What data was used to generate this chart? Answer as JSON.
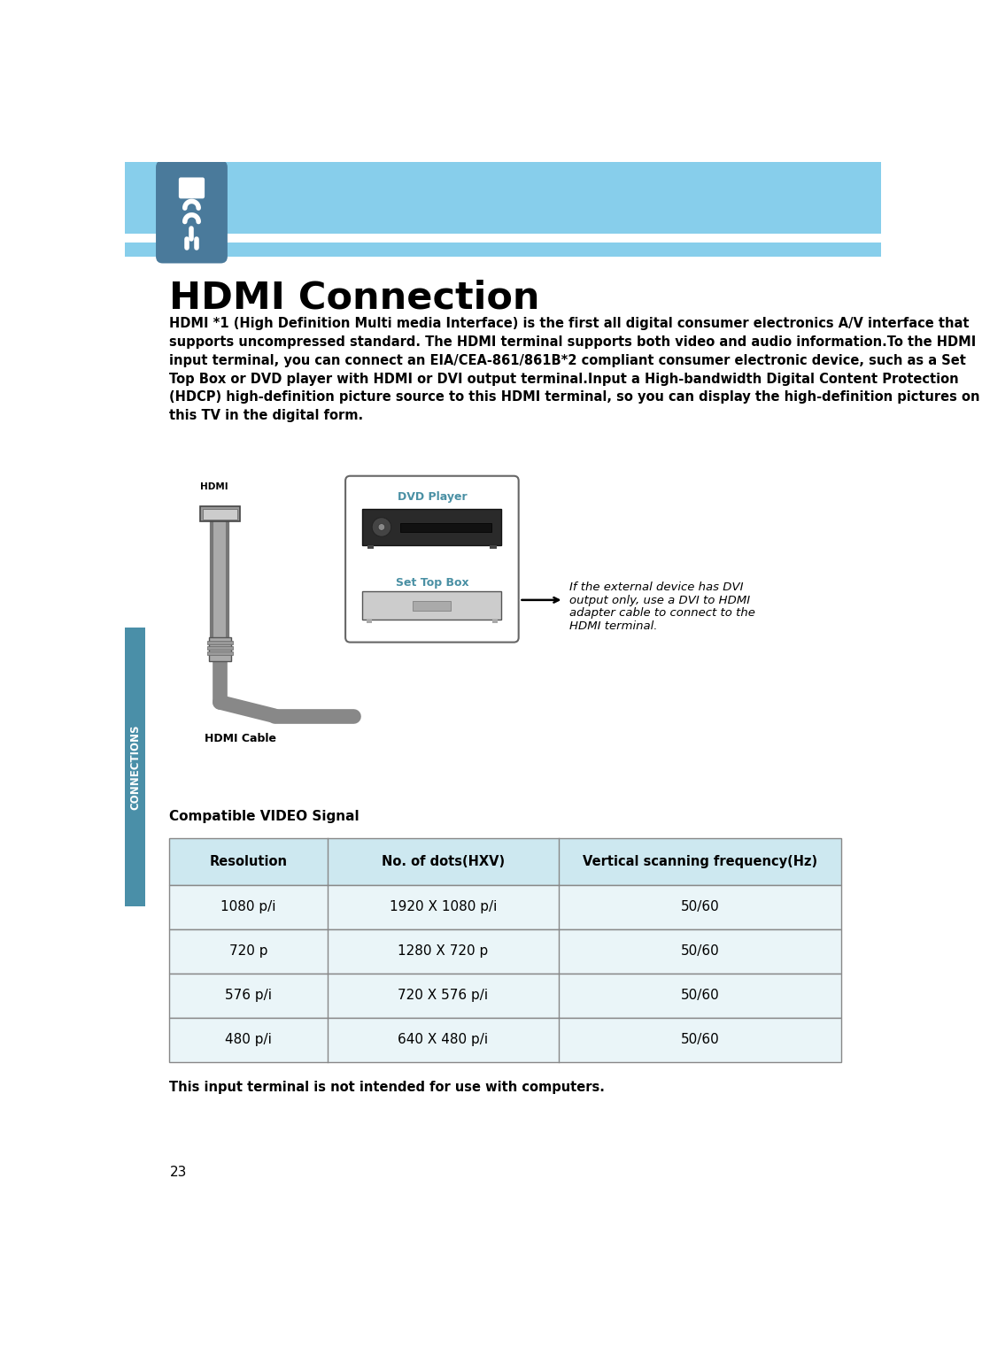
{
  "page_bg": "#ffffff",
  "header_bg": "#87CEEB",
  "sidebar_color": "#4a8fa8",
  "title": "HDMI Connection",
  "body_lines": [
    "HDMI *1 (High Definition Multi media Interface) is the first all digital consumer electronics A/V interface that",
    "supports uncompressed standard. The HDMI terminal supports both video and audio information.To the HDMI",
    "input terminal, you can connect an EIA/CEA-861/861B*2 compliant consumer electronic device, such as a Set",
    "Top Box or DVD player with HDMI or DVI output terminal.Input a High-bandwidth Digital Content Protection",
    "(HDCP) high-definition picture source to this HDMI terminal, so you can display the high-definition pictures on",
    "this TV in the digital form."
  ],
  "sidebar_text": "CONNECTIONS",
  "table_header_bg": "#cde8f0",
  "table_row_bg": "#eaf5f8",
  "table_border": "#888888",
  "table_headers": [
    "Resolution",
    "No. of dots(HXV)",
    "Vertical scanning frequency(Hz)"
  ],
  "table_rows": [
    [
      "1080 p/i",
      "1920 X 1080 p/i",
      "50/60"
    ],
    [
      "720 p",
      "1280 X 720 p",
      "50/60"
    ],
    [
      "576 p/i",
      "720 X 576 p/i",
      "50/60"
    ],
    [
      "480 p/i",
      "640 X 480 p/i",
      "50/60"
    ]
  ],
  "compatible_label": "Compatible VIDEO Signal",
  "note_text": "This input terminal is not intended for use with computers.",
  "page_number": "23",
  "dvd_label": "DVD Player",
  "settop_label": "Set Top Box",
  "hdmi_label": "HDMI",
  "cable_label": "HDMI Cable",
  "arrow_note_lines": [
    "If the external device has DVI",
    "output only, use a DVI to HDMI",
    "adapter cable to connect to the",
    "HDMI terminal."
  ],
  "icon_bg": "#4a7a9b",
  "teal_label_color": "#4a90a4"
}
